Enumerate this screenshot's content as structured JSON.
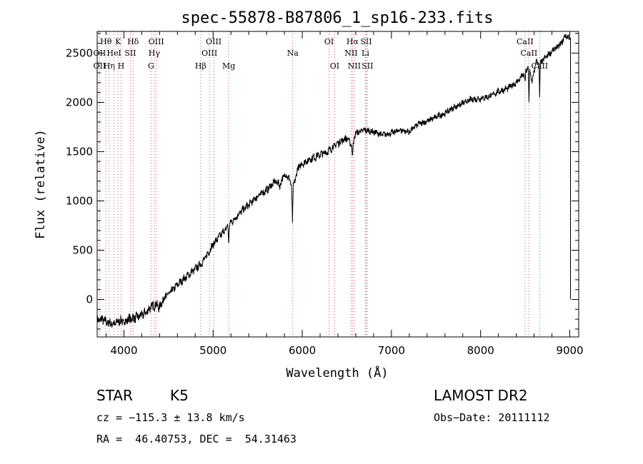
{
  "chart_data": {
    "type": "line",
    "title": "spec-55878-B87806_1_sp16-233.fits",
    "xlabel": "Wavelength (Å)",
    "ylabel": "Flux (relative)",
    "xlim": [
      3700,
      9100
    ],
    "ylim": [
      -380,
      2720
    ],
    "x_ticks": [
      4000,
      5000,
      6000,
      7000,
      8000,
      9000
    ],
    "y_ticks": [
      0,
      500,
      1000,
      1500,
      2000,
      2500
    ],
    "series": [
      {
        "x": [
          3700,
          3750,
          3800,
          3850,
          3900,
          3950,
          4000,
          4050,
          4100,
          4150,
          4200,
          4250,
          4300,
          4350,
          4400,
          4450,
          4500,
          4600,
          4700,
          4800,
          4850,
          4900,
          5000,
          5100,
          5200,
          5300,
          5400,
          5500,
          5600,
          5700,
          5750,
          5800,
          5850,
          5890,
          5950,
          6000,
          6100,
          6200,
          6300,
          6400,
          6500,
          6560,
          6600,
          6700,
          6800,
          6900,
          7000,
          7100,
          7200,
          7300,
          7400,
          7500,
          7600,
          7700,
          7800,
          7900,
          8000,
          8100,
          8200,
          8300,
          8400,
          8500,
          8540,
          8580,
          8620,
          8660,
          8700,
          8800,
          8900,
          8950,
          9000
        ],
        "y": [
          -220,
          -200,
          -230,
          -240,
          -250,
          -210,
          -230,
          -200,
          -190,
          -180,
          -160,
          -130,
          -80,
          -50,
          -80,
          20,
          50,
          150,
          230,
          310,
          350,
          400,
          560,
          670,
          780,
          880,
          960,
          1050,
          1110,
          1200,
          1160,
          1270,
          1240,
          1100,
          1330,
          1380,
          1430,
          1470,
          1510,
          1590,
          1640,
          1560,
          1690,
          1720,
          1700,
          1670,
          1690,
          1720,
          1700,
          1780,
          1810,
          1850,
          1890,
          1950,
          1990,
          2030,
          2040,
          2060,
          2110,
          2140,
          2200,
          2300,
          2370,
          2200,
          2420,
          2380,
          2430,
          2520,
          2590,
          2680,
          2650
        ]
      }
    ],
    "absorption_features": [
      {
        "x": 5175,
        "depth": 200
      },
      {
        "x": 5890,
        "depth": 330
      },
      {
        "x": 6563,
        "depth": 150
      },
      {
        "x": 8498,
        "depth": 120
      },
      {
        "x": 8542,
        "depth": 380
      },
      {
        "x": 8662,
        "depth": 320
      }
    ],
    "lines": [
      {
        "label": "Hθ",
        "x": 3798,
        "row": 1
      },
      {
        "label": "OII",
        "x": 3727,
        "row": 2
      },
      {
        "label": "OII",
        "x": 3727,
        "row": 3
      },
      {
        "label": "K",
        "x": 3934,
        "row": 1
      },
      {
        "label": "Hη",
        "x": 3835,
        "row": 3
      },
      {
        "label": "HeI",
        "x": 3889,
        "row": 2
      },
      {
        "label": "H",
        "x": 3969,
        "row": 3
      },
      {
        "label": "SII",
        "x": 4072,
        "row": 2
      },
      {
        "label": "Hδ",
        "x": 4102,
        "row": 1
      },
      {
        "label": "OIII",
        "x": 4363,
        "row": 1
      },
      {
        "label": "Hγ",
        "x": 4340,
        "row": 2
      },
      {
        "label": "G",
        "x": 4304,
        "row": 3
      },
      {
        "label": "Hβ",
        "x": 4861,
        "row": 3
      },
      {
        "label": "OIII",
        "x": 4959,
        "row": 2
      },
      {
        "label": "OIII",
        "x": 5007,
        "row": 1
      },
      {
        "label": "Mg",
        "x": 5175,
        "row": 3
      },
      {
        "label": "Na",
        "x": 5893,
        "row": 2
      },
      {
        "label": "OI",
        "x": 6300,
        "row": 1
      },
      {
        "label": "OI",
        "x": 6363,
        "row": 3
      },
      {
        "label": "Hα",
        "x": 6563,
        "row": 1
      },
      {
        "label": "NII",
        "x": 6548,
        "row": 2
      },
      {
        "label": "NII",
        "x": 6583,
        "row": 3
      },
      {
        "label": "SII",
        "x": 6716,
        "row": 1
      },
      {
        "label": "Li",
        "x": 6708,
        "row": 2
      },
      {
        "label": "SII",
        "x": 6731,
        "row": 3
      },
      {
        "label": "CaII",
        "x": 8498,
        "row": 1
      },
      {
        "label": "CaII",
        "x": 8542,
        "row": 2
      },
      {
        "label": "CaII",
        "x": 8662,
        "row": 3
      }
    ]
  },
  "info": {
    "class": "STAR",
    "subclass": "K5",
    "survey": "LAMOST DR2",
    "cz": "cz = −115.3 ± 13.8 km/s",
    "obs_date": "Obs−Date: 20111112",
    "radec": "RA =  46.40753, DEC =  54.31463"
  }
}
